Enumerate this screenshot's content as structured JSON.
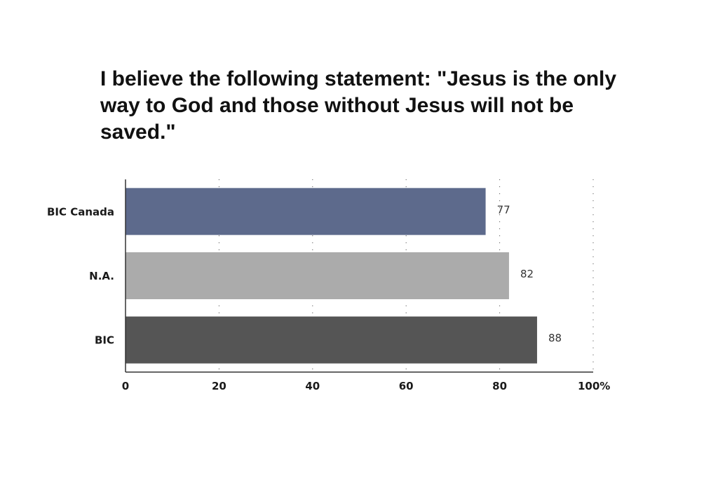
{
  "chart_data": {
    "type": "bar",
    "orientation": "horizontal",
    "title": "I believe the following statement: \"Jesus is the only way to God and those without Jesus will not be saved.\"",
    "categories": [
      "BIC Canada",
      "N.A.",
      "BIC"
    ],
    "values": [
      77,
      82,
      88
    ],
    "value_labels": [
      "77",
      "82",
      "88"
    ],
    "colors": [
      "#5d6a8c",
      "#ababab",
      "#555555"
    ],
    "xlim": [
      0,
      100
    ],
    "x_ticks": [
      0,
      20,
      40,
      60,
      80,
      100
    ],
    "x_tick_labels": [
      "0",
      "20",
      "40",
      "60",
      "80",
      "100%"
    ],
    "xlabel": "",
    "ylabel": "",
    "grid": "dotted vertical",
    "legend": "none"
  }
}
